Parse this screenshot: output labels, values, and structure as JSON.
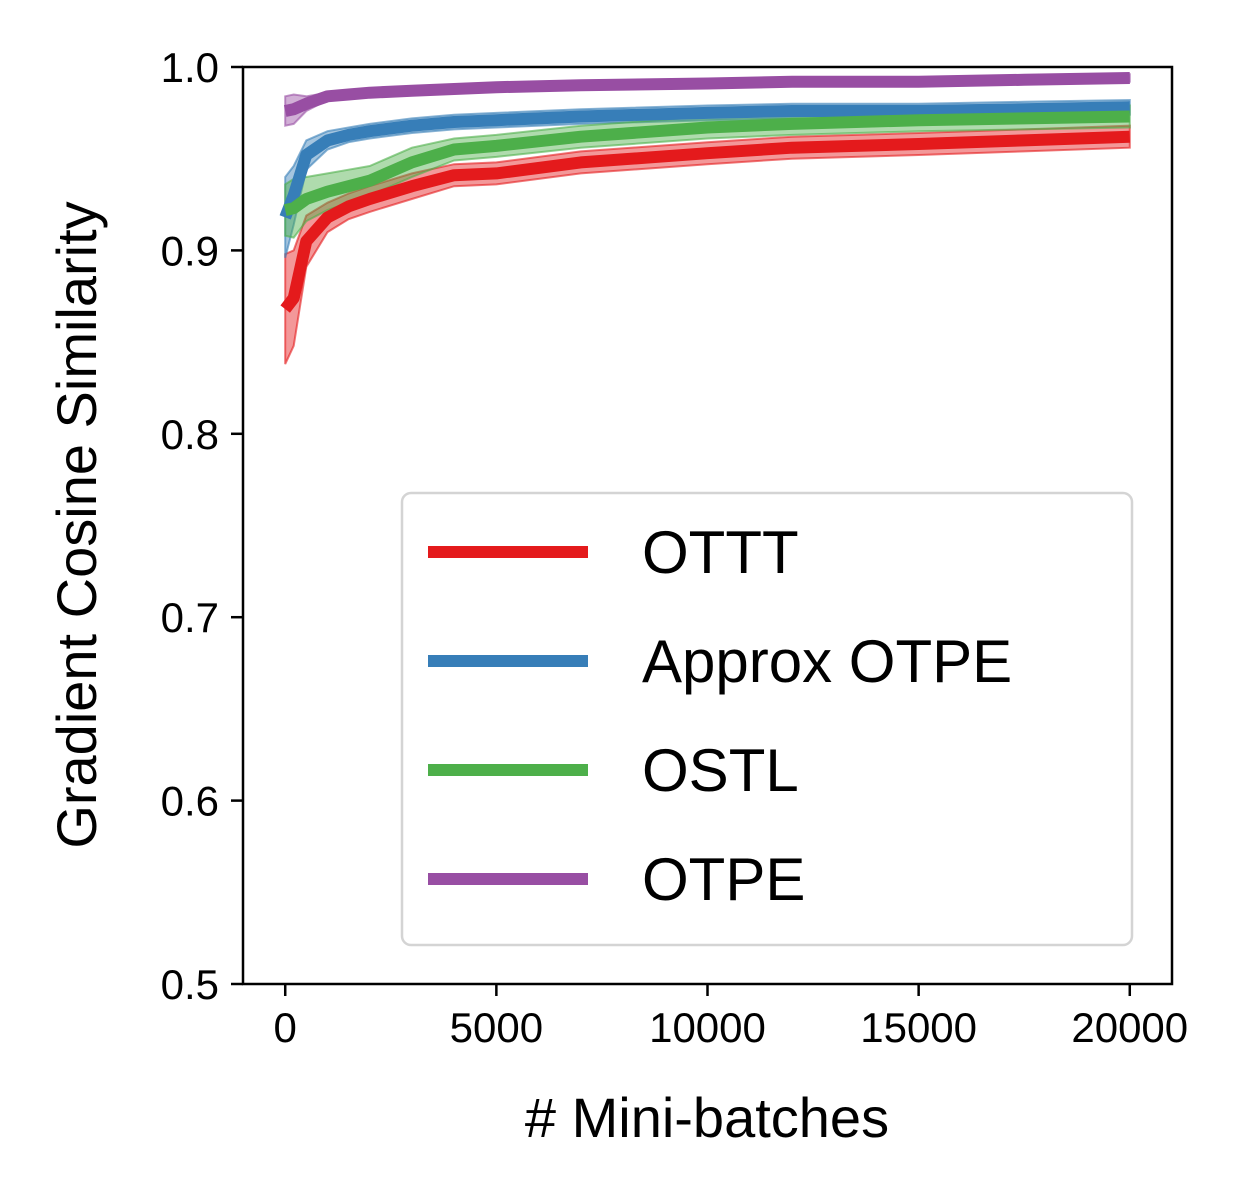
{
  "chart_data": {
    "type": "line",
    "title": "",
    "xlabel": "# Mini-batches",
    "ylabel": "Gradient Cosine Similarity",
    "xlim": [
      -1000,
      21000
    ],
    "ylim": [
      0.5,
      1.0
    ],
    "xticks": [
      0,
      5000,
      10000,
      15000,
      20000
    ],
    "xtick_labels": [
      "0",
      "5000",
      "10000",
      "15000",
      "20000"
    ],
    "yticks": [
      0.5,
      0.6,
      0.7,
      0.8,
      0.9,
      1.0
    ],
    "ytick_labels": [
      "0.5",
      "0.6",
      "0.7",
      "0.8",
      "0.9",
      "1.0"
    ],
    "grid": false,
    "legend_position": "lower-right",
    "series": [
      {
        "name": "OTTT",
        "color": "#e41a1c",
        "x": [
          0,
          200,
          500,
          1000,
          1500,
          2000,
          3000,
          4000,
          5000,
          7000,
          10000,
          12000,
          15000,
          17500,
          20000
        ],
        "y": [
          0.868,
          0.874,
          0.905,
          0.918,
          0.924,
          0.928,
          0.935,
          0.941,
          0.942,
          0.948,
          0.953,
          0.956,
          0.958,
          0.96,
          0.962
        ],
        "band": [
          0.03,
          0.026,
          0.014,
          0.008,
          0.007,
          0.007,
          0.007,
          0.006,
          0.006,
          0.006,
          0.006,
          0.006,
          0.006,
          0.006,
          0.006
        ]
      },
      {
        "name": "Approx OTPE",
        "color": "#377eb8",
        "x": [
          0,
          200,
          500,
          1000,
          1500,
          2000,
          3000,
          4000,
          5000,
          7000,
          10000,
          12000,
          15000,
          17500,
          20000
        ],
        "y": [
          0.918,
          0.93,
          0.952,
          0.96,
          0.963,
          0.965,
          0.968,
          0.97,
          0.971,
          0.973,
          0.975,
          0.976,
          0.976,
          0.977,
          0.978
        ],
        "band": [
          0.022,
          0.016,
          0.008,
          0.005,
          0.004,
          0.004,
          0.004,
          0.004,
          0.004,
          0.004,
          0.004,
          0.004,
          0.004,
          0.004,
          0.004
        ]
      },
      {
        "name": "OSTL",
        "color": "#4daf4a",
        "x": [
          0,
          200,
          500,
          1000,
          1500,
          2000,
          3000,
          4000,
          5000,
          7000,
          10000,
          12000,
          15000,
          17500,
          20000
        ],
        "y": [
          0.922,
          0.923,
          0.928,
          0.932,
          0.935,
          0.938,
          0.948,
          0.955,
          0.957,
          0.962,
          0.967,
          0.969,
          0.971,
          0.972,
          0.973
        ],
        "band": [
          0.014,
          0.016,
          0.012,
          0.01,
          0.009,
          0.008,
          0.008,
          0.006,
          0.006,
          0.006,
          0.006,
          0.006,
          0.006,
          0.006,
          0.006
        ]
      },
      {
        "name": "OTPE",
        "color": "#984ea3",
        "x": [
          0,
          200,
          500,
          1000,
          1500,
          2000,
          3000,
          4000,
          5000,
          7000,
          10000,
          12000,
          15000,
          17500,
          20000
        ],
        "y": [
          0.976,
          0.977,
          0.98,
          0.984,
          0.985,
          0.986,
          0.987,
          0.988,
          0.989,
          0.99,
          0.991,
          0.992,
          0.992,
          0.993,
          0.994
        ],
        "band": [
          0.008,
          0.008,
          0.004,
          0.002,
          0.002,
          0.002,
          0.002,
          0.002,
          0.002,
          0.002,
          0.002,
          0.002,
          0.002,
          0.002,
          0.002
        ]
      }
    ]
  }
}
